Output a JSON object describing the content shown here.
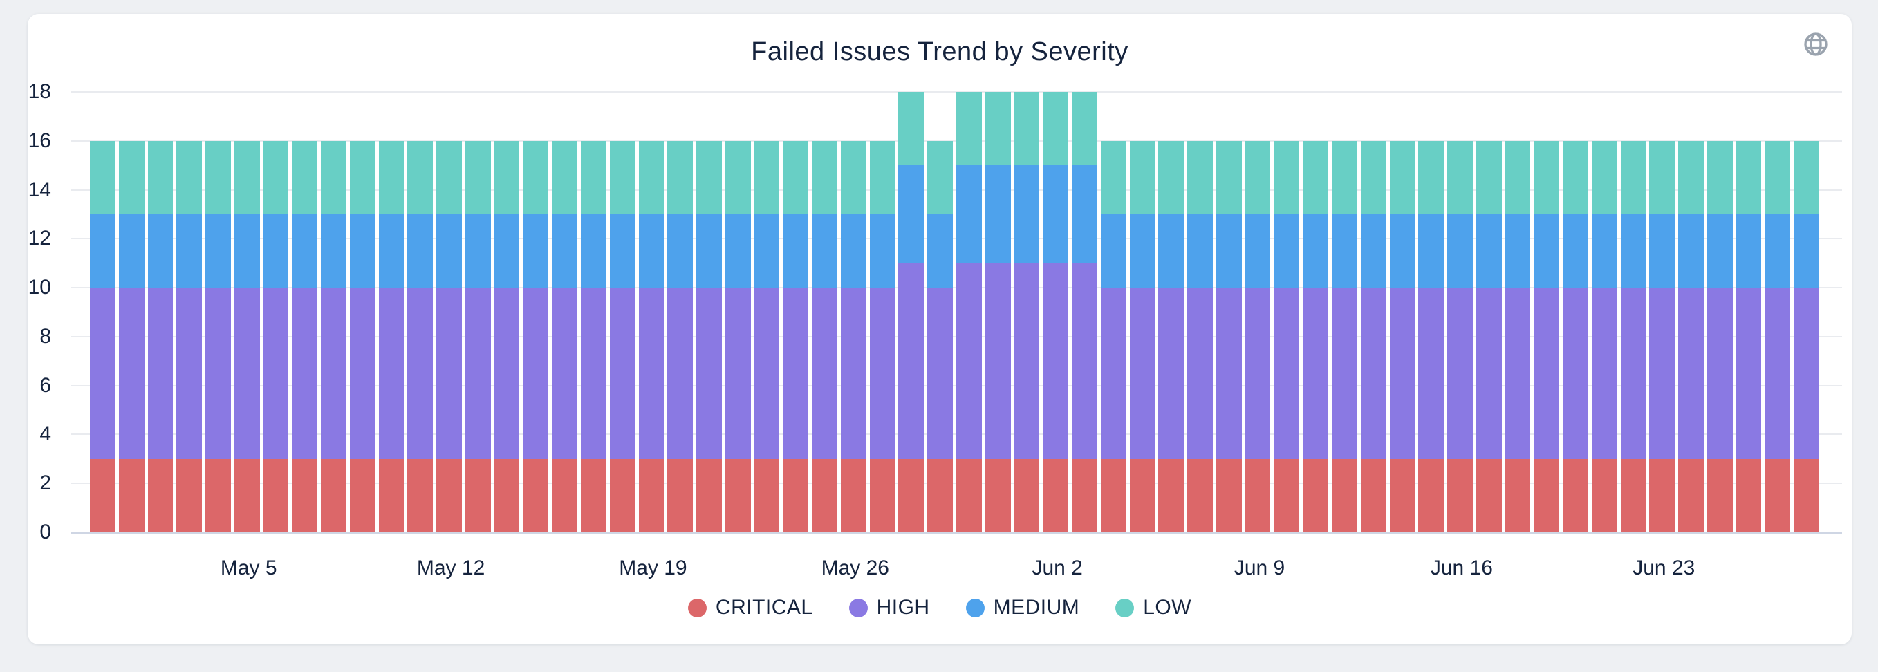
{
  "page": {
    "background": "#eef0f3",
    "text_color": "#15233d"
  },
  "header": {
    "globe_icon": "globe-icon",
    "globe_icon_color": "#9aa3ae"
  },
  "chart_data": {
    "type": "bar",
    "stacked": true,
    "title": "Failed Issues Trend by Severity",
    "grid": true,
    "legend_position": "bottom",
    "ylim": [
      0,
      18
    ],
    "yticks": [
      0,
      2,
      4,
      6,
      8,
      10,
      12,
      14,
      16,
      18
    ],
    "xticks": [
      {
        "label": "May 5",
        "index": 5
      },
      {
        "label": "May 12",
        "index": 12
      },
      {
        "label": "May 19",
        "index": 19
      },
      {
        "label": "May 26",
        "index": 26
      },
      {
        "label": "Jun 2",
        "index": 33
      },
      {
        "label": "Jun 9",
        "index": 40
      },
      {
        "label": "Jun 16",
        "index": 47
      },
      {
        "label": "Jun 23",
        "index": 54
      }
    ],
    "x_dates": [
      "Apr 30",
      "May 1",
      "May 2",
      "May 3",
      "May 4",
      "May 5",
      "May 6",
      "May 7",
      "May 8",
      "May 9",
      "May 10",
      "May 11",
      "May 12",
      "May 13",
      "May 14",
      "May 15",
      "May 16",
      "May 17",
      "May 18",
      "May 19",
      "May 20",
      "May 21",
      "May 22",
      "May 23",
      "May 24",
      "May 25",
      "May 26",
      "May 27",
      "May 28",
      "May 29",
      "May 30",
      "May 31",
      "Jun 1",
      "Jun 2",
      "Jun 3",
      "Jun 4",
      "Jun 5",
      "Jun 6",
      "Jun 7",
      "Jun 8",
      "Jun 9",
      "Jun 10",
      "Jun 11",
      "Jun 12",
      "Jun 13",
      "Jun 14",
      "Jun 15",
      "Jun 16",
      "Jun 17",
      "Jun 18",
      "Jun 19",
      "Jun 20",
      "Jun 21",
      "Jun 22",
      "Jun 23",
      "Jun 24",
      "Jun 25",
      "Jun 26",
      "Jun 27",
      "Jun 28"
    ],
    "series": [
      {
        "name": "CRITICAL",
        "color": "#dc6769",
        "values": [
          3,
          3,
          3,
          3,
          3,
          3,
          3,
          3,
          3,
          3,
          3,
          3,
          3,
          3,
          3,
          3,
          3,
          3,
          3,
          3,
          3,
          3,
          3,
          3,
          3,
          3,
          3,
          3,
          3,
          3,
          3,
          3,
          3,
          3,
          3,
          3,
          3,
          3,
          3,
          3,
          3,
          3,
          3,
          3,
          3,
          3,
          3,
          3,
          3,
          3,
          3,
          3,
          3,
          3,
          3,
          3,
          3,
          3,
          3,
          3
        ]
      },
      {
        "name": "HIGH",
        "color": "#8a79e3",
        "values": [
          7,
          7,
          7,
          7,
          7,
          7,
          7,
          7,
          7,
          7,
          7,
          7,
          7,
          7,
          7,
          7,
          7,
          7,
          7,
          7,
          7,
          7,
          7,
          7,
          7,
          7,
          7,
          7,
          8,
          7,
          8,
          8,
          8,
          8,
          8,
          7,
          7,
          7,
          7,
          7,
          7,
          7,
          7,
          7,
          7,
          7,
          7,
          7,
          7,
          7,
          7,
          7,
          7,
          7,
          7,
          7,
          7,
          7,
          7,
          7
        ]
      },
      {
        "name": "MEDIUM",
        "color": "#4ea2ec",
        "values": [
          3,
          3,
          3,
          3,
          3,
          3,
          3,
          3,
          3,
          3,
          3,
          3,
          3,
          3,
          3,
          3,
          3,
          3,
          3,
          3,
          3,
          3,
          3,
          3,
          3,
          3,
          3,
          3,
          4,
          3,
          4,
          4,
          4,
          4,
          4,
          3,
          3,
          3,
          3,
          3,
          3,
          3,
          3,
          3,
          3,
          3,
          3,
          3,
          3,
          3,
          3,
          3,
          3,
          3,
          3,
          3,
          3,
          3,
          3,
          3
        ]
      },
      {
        "name": "LOW",
        "color": "#68cfc5",
        "values": [
          3,
          3,
          3,
          3,
          3,
          3,
          3,
          3,
          3,
          3,
          3,
          3,
          3,
          3,
          3,
          3,
          3,
          3,
          3,
          3,
          3,
          3,
          3,
          3,
          3,
          3,
          3,
          3,
          3,
          3,
          3,
          3,
          3,
          3,
          3,
          3,
          3,
          3,
          3,
          3,
          3,
          3,
          3,
          3,
          3,
          3,
          3,
          3,
          3,
          3,
          3,
          3,
          3,
          3,
          3,
          3,
          3,
          3,
          3,
          3
        ]
      }
    ]
  }
}
